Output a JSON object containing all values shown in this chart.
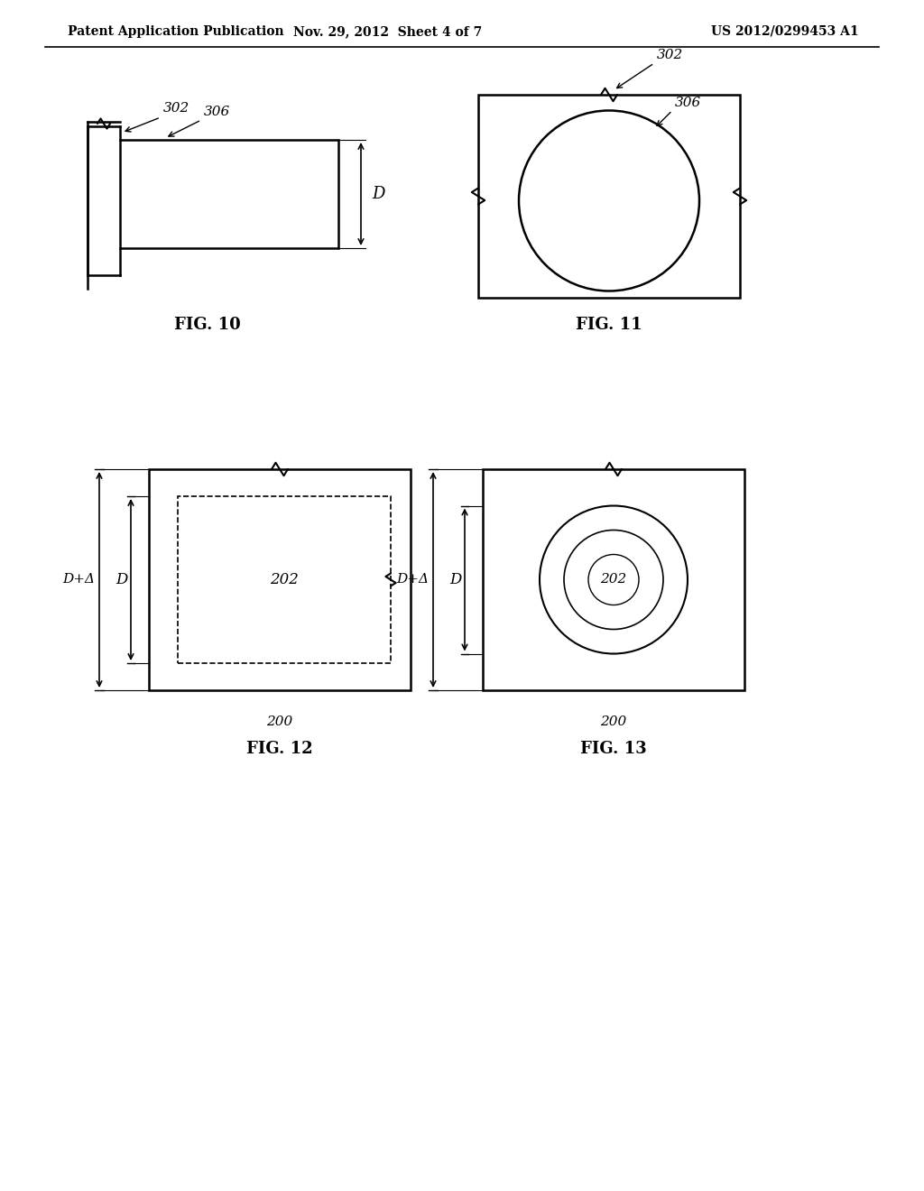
{
  "header_left": "Patent Application Publication",
  "header_mid": "Nov. 29, 2012  Sheet 4 of 7",
  "header_right": "US 2012/0299453 A1",
  "background": "#ffffff",
  "fig10_label": "FIG. 10",
  "fig11_label": "FIG. 11",
  "fig12_label": "FIG. 12",
  "fig13_label": "FIG. 13",
  "label_302": "302",
  "label_306": "306",
  "label_D": "D",
  "label_DpA": "D+Δ",
  "label_200": "200",
  "label_202": "202"
}
